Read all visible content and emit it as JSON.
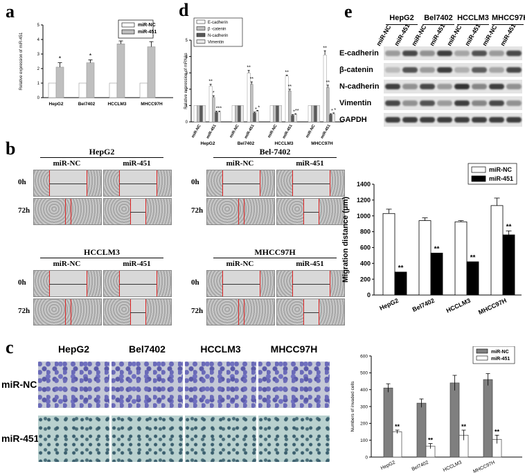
{
  "panel_letters": {
    "a": "a",
    "b": "b",
    "c": "c",
    "d": "d",
    "e": "e"
  },
  "colors": {
    "ctrl_white": "#ffffff",
    "ctrl_gray": "#7f7f7f",
    "gray_light": "#bfbfbf",
    "black": "#000000",
    "ecad": "#ffffff",
    "bcat": "#bfbfbf",
    "ncad": "#5a5a5a",
    "vim": "#e8e8e8"
  },
  "wound": {
    "time_labels": [
      "0h",
      "72h"
    ],
    "groups": [
      {
        "title": "HepG2",
        "nc": "miR-NC",
        "mir": "miR-451"
      },
      {
        "title": "Bel-7402",
        "nc": "miR-NC",
        "mir": "miR-451"
      },
      {
        "title": "HCCLM3",
        "nc": "miR-NC",
        "mir": "miR-451"
      },
      {
        "title": "MHCC97H",
        "nc": "miR-NC",
        "mir": "miR-451"
      }
    ]
  },
  "transwell": {
    "columns": [
      "HepG2",
      "Bel7402",
      "HCCLM3",
      "MHCC97H"
    ],
    "rows": [
      "miR-NC",
      "miR-451"
    ]
  },
  "western": {
    "cells": [
      "HepG2",
      "Bel7402",
      "HCCLM3",
      "MHCC97H"
    ],
    "lanes": [
      "miR-NC",
      "miR-451",
      "miR-NC",
      "miR-451",
      "miR-NC",
      "miR-451",
      "miR-NC",
      "miR-451"
    ],
    "proteins": [
      "E-cadherin",
      "β-catenin",
      "N-cadherin",
      "Vimentin",
      "GAPDH"
    ]
  },
  "chart_data": [
    {
      "id": "a",
      "type": "bar",
      "categories": [
        "HepG2",
        "Bel7402",
        "HCCLM3",
        "MHCC97H"
      ],
      "series": [
        {
          "name": "miR-NC",
          "values": [
            1,
            1,
            1,
            1
          ],
          "errors": [
            0,
            0,
            0,
            0
          ]
        },
        {
          "name": "miR-451",
          "values": [
            2.1,
            2.4,
            3.7,
            3.5
          ],
          "errors": [
            0.3,
            0.2,
            0.2,
            0.35
          ]
        }
      ],
      "annotations": [
        "*",
        "*",
        "**",
        "**"
      ],
      "ylabel": "Relative expression of miR-451",
      "ylim": [
        0,
        5
      ],
      "yticks": [
        0,
        1,
        2,
        3,
        4,
        5
      ],
      "legend": "top-right"
    },
    {
      "id": "d",
      "type": "bar",
      "groups": [
        "HepG2",
        "Bel7402",
        "HCCLM3",
        "MHCC97H"
      ],
      "lanes": [
        "miR-NC",
        "miR-451"
      ],
      "series": [
        {
          "name": "E-cadherin",
          "nc": [
            1,
            1,
            1,
            1
          ],
          "mir": [
            2.2,
            3.0,
            2.8,
            4.1
          ],
          "mir_err": [
            0.1,
            0.15,
            0.06,
            0.25
          ],
          "stars": [
            "**",
            "**",
            "**",
            "**"
          ]
        },
        {
          "name": "β -catenin",
          "nc": [
            1,
            1,
            1,
            1
          ],
          "mir": [
            1.5,
            2.3,
            1.9,
            2.1
          ],
          "mir_err": [
            0.1,
            0.15,
            0.1,
            0.15
          ],
          "stars": [
            "*",
            "**",
            "**",
            "**"
          ]
        },
        {
          "name": "N-cadherin",
          "nc": [
            1,
            1,
            1,
            1
          ],
          "mir": [
            0.6,
            0.55,
            0.4,
            0.45
          ],
          "mir_err": [
            0.05,
            0.05,
            0.04,
            0.05
          ],
          "stars": [
            "**",
            "*",
            "*",
            "*"
          ]
        },
        {
          "name": "Vimentin",
          "nc": [
            1,
            1,
            1,
            1
          ],
          "mir": [
            0.6,
            0.65,
            0.45,
            0.5
          ],
          "mir_err": [
            0.05,
            0.05,
            0.05,
            0.05
          ],
          "stars": [
            "*",
            "*",
            "**",
            "*"
          ]
        }
      ],
      "ylabel": "Relative expression of mRNAs",
      "ylim": [
        0,
        5
      ],
      "yticks": [
        0,
        1,
        2,
        3,
        4,
        5
      ],
      "legend": "top-left"
    },
    {
      "id": "e-migration",
      "type": "bar",
      "categories": [
        "HepG2",
        "Bel7402",
        "HCCLM3",
        "MHCC97H"
      ],
      "series": [
        {
          "name": "miR-NC",
          "values": [
            1030,
            940,
            925,
            1130
          ],
          "errors": [
            55,
            35,
            15,
            95
          ]
        },
        {
          "name": "miR-451",
          "values": [
            290,
            530,
            420,
            760
          ],
          "errors": [
            0,
            0,
            0,
            50
          ]
        }
      ],
      "annotations": [
        "**",
        "**",
        "**",
        "**"
      ],
      "ylabel": "Migration distance (μm)",
      "ylim": [
        0,
        1400
      ],
      "yticks": [
        0,
        200,
        400,
        600,
        800,
        1000,
        1200,
        1400
      ],
      "legend": "top-right"
    },
    {
      "id": "c-invasion",
      "type": "bar",
      "categories": [
        "HepG2",
        "Bel7402",
        "HCCLM3",
        "MHCC97H"
      ],
      "series": [
        {
          "name": "miR-NC",
          "values": [
            410,
            320,
            440,
            460
          ],
          "errors": [
            25,
            25,
            45,
            35
          ]
        },
        {
          "name": "miR-451",
          "values": [
            150,
            65,
            130,
            105
          ],
          "errors": [
            10,
            15,
            30,
            25
          ]
        }
      ],
      "annotations": [
        "**",
        "**",
        "**",
        "**"
      ],
      "ylabel": "Numbers of invaded cells",
      "ylim": [
        0,
        600
      ],
      "yticks": [
        0,
        100,
        200,
        300,
        400,
        500,
        600
      ],
      "legend": "top-right"
    }
  ]
}
